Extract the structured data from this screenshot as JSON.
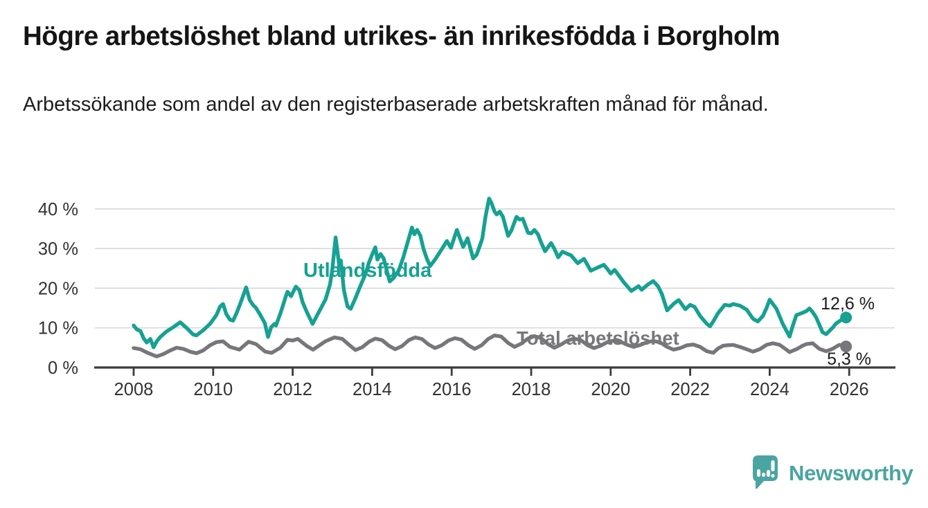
{
  "header": {
    "title": "Högre arbetslöshet bland utrikes- än inrikesfödda i Borgholm",
    "subtitle": "Arbetssökande som andel av den registerbaserade arbetskraften månad för månad."
  },
  "branding": {
    "logo_text": "Newsworthy",
    "logo_icon": "speech-bubble-with-bar-chart-and-exclamation",
    "logo_color": "#4aa5a2"
  },
  "chart_data": {
    "type": "line",
    "title": "Högre arbetslöshet bland utrikes- än inrikesfödda i Borgholm",
    "subtitle": "Arbetssökande som andel av den registerbaserade arbetskraften månad för månad.",
    "unit": "%",
    "grid": true,
    "legend_position": "inline-labels-on-chart",
    "x_axis": {
      "range": [
        2007.0,
        2027.15
      ],
      "tick_years": [
        2008,
        2010,
        2012,
        2014,
        2016,
        2018,
        2020,
        2022,
        2024,
        2026
      ]
    },
    "y_axis": {
      "range": [
        0,
        44
      ],
      "ticks": [
        {
          "value": 0,
          "label": "0 %"
        },
        {
          "value": 10,
          "label": "10 %"
        },
        {
          "value": 20,
          "label": "20 %"
        },
        {
          "value": 30,
          "label": "30 %"
        },
        {
          "value": 40,
          "label": "40 %"
        }
      ]
    },
    "series": [
      {
        "name": "Utlandsfödda",
        "color": "#16a192",
        "end_value": 12.6,
        "end_label": "12,6 %",
        "points": [
          [
            2008.0,
            10.6
          ],
          [
            2008.08,
            9.6
          ],
          [
            2008.17,
            9.2
          ],
          [
            2008.25,
            7.4
          ],
          [
            2008.33,
            6.3
          ],
          [
            2008.42,
            7.2
          ],
          [
            2008.5,
            5.1
          ],
          [
            2008.58,
            6.6
          ],
          [
            2008.67,
            7.7
          ],
          [
            2008.83,
            9.1
          ],
          [
            2009.0,
            10.2
          ],
          [
            2009.17,
            11.4
          ],
          [
            2009.33,
            10.0
          ],
          [
            2009.5,
            8.3
          ],
          [
            2009.58,
            8.1
          ],
          [
            2009.75,
            9.4
          ],
          [
            2009.92,
            11.0
          ],
          [
            2010.08,
            13.2
          ],
          [
            2010.17,
            15.3
          ],
          [
            2010.25,
            16.0
          ],
          [
            2010.33,
            13.5
          ],
          [
            2010.42,
            12.1
          ],
          [
            2010.5,
            11.8
          ],
          [
            2010.58,
            13.5
          ],
          [
            2010.67,
            15.8
          ],
          [
            2010.83,
            20.2
          ],
          [
            2010.92,
            17.0
          ],
          [
            2011.0,
            15.8
          ],
          [
            2011.08,
            15.0
          ],
          [
            2011.17,
            13.5
          ],
          [
            2011.3,
            11.2
          ],
          [
            2011.38,
            7.7
          ],
          [
            2011.46,
            10.2
          ],
          [
            2011.54,
            11.0
          ],
          [
            2011.58,
            10.6
          ],
          [
            2011.7,
            13.9
          ],
          [
            2011.83,
            18.0
          ],
          [
            2011.87,
            19.1
          ],
          [
            2011.96,
            18.0
          ],
          [
            2012.08,
            20.4
          ],
          [
            2012.17,
            19.5
          ],
          [
            2012.25,
            16.5
          ],
          [
            2012.36,
            13.9
          ],
          [
            2012.5,
            11.0
          ],
          [
            2012.58,
            12.5
          ],
          [
            2012.67,
            14.2
          ],
          [
            2012.83,
            17.2
          ],
          [
            2012.94,
            21.0
          ],
          [
            2013.0,
            25.0
          ],
          [
            2013.08,
            32.8
          ],
          [
            2013.13,
            29.0
          ],
          [
            2013.17,
            25.5
          ],
          [
            2013.21,
            27.0
          ],
          [
            2013.29,
            19.5
          ],
          [
            2013.38,
            15.4
          ],
          [
            2013.46,
            14.8
          ],
          [
            2013.58,
            17.5
          ],
          [
            2013.7,
            20.5
          ],
          [
            2013.83,
            23.5
          ],
          [
            2013.92,
            26.5
          ],
          [
            2014.0,
            28.5
          ],
          [
            2014.08,
            30.3
          ],
          [
            2014.13,
            27.2
          ],
          [
            2014.21,
            28.6
          ],
          [
            2014.29,
            27.5
          ],
          [
            2014.38,
            24.0
          ],
          [
            2014.44,
            21.7
          ],
          [
            2014.54,
            22.6
          ],
          [
            2014.67,
            24.5
          ],
          [
            2014.79,
            28.0
          ],
          [
            2014.92,
            32.5
          ],
          [
            2015.0,
            35.3
          ],
          [
            2015.06,
            33.6
          ],
          [
            2015.13,
            34.7
          ],
          [
            2015.21,
            33.3
          ],
          [
            2015.29,
            30.0
          ],
          [
            2015.38,
            27.3
          ],
          [
            2015.46,
            25.6
          ],
          [
            2015.58,
            27.2
          ],
          [
            2015.75,
            29.8
          ],
          [
            2015.88,
            31.9
          ],
          [
            2015.98,
            30.2
          ],
          [
            2016.13,
            34.7
          ],
          [
            2016.21,
            32.5
          ],
          [
            2016.29,
            30.4
          ],
          [
            2016.4,
            32.6
          ],
          [
            2016.54,
            27.5
          ],
          [
            2016.63,
            28.5
          ],
          [
            2016.77,
            32.5
          ],
          [
            2016.85,
            38.0
          ],
          [
            2016.94,
            42.6
          ],
          [
            2017.0,
            41.5
          ],
          [
            2017.08,
            39.3
          ],
          [
            2017.13,
            38.6
          ],
          [
            2017.21,
            39.3
          ],
          [
            2017.29,
            38.0
          ],
          [
            2017.42,
            33.2
          ],
          [
            2017.5,
            34.5
          ],
          [
            2017.63,
            38.0
          ],
          [
            2017.71,
            37.3
          ],
          [
            2017.79,
            37.5
          ],
          [
            2017.92,
            34.0
          ],
          [
            2018.0,
            33.8
          ],
          [
            2018.08,
            34.7
          ],
          [
            2018.17,
            33.6
          ],
          [
            2018.25,
            31.5
          ],
          [
            2018.35,
            29.3
          ],
          [
            2018.5,
            31.4
          ],
          [
            2018.58,
            30.0
          ],
          [
            2018.68,
            27.8
          ],
          [
            2018.79,
            29.2
          ],
          [
            2018.92,
            28.6
          ],
          [
            2019.0,
            28.3
          ],
          [
            2019.17,
            26.3
          ],
          [
            2019.33,
            27.4
          ],
          [
            2019.5,
            24.4
          ],
          [
            2019.67,
            25.2
          ],
          [
            2019.83,
            25.9
          ],
          [
            2019.92,
            24.8
          ],
          [
            2020.0,
            23.7
          ],
          [
            2020.1,
            24.6
          ],
          [
            2020.19,
            23.4
          ],
          [
            2020.33,
            21.5
          ],
          [
            2020.52,
            19.3
          ],
          [
            2020.7,
            20.5
          ],
          [
            2020.78,
            19.6
          ],
          [
            2020.92,
            20.8
          ],
          [
            2021.07,
            21.8
          ],
          [
            2021.19,
            20.5
          ],
          [
            2021.29,
            18.5
          ],
          [
            2021.42,
            14.4
          ],
          [
            2021.59,
            16.1
          ],
          [
            2021.71,
            17.0
          ],
          [
            2021.88,
            14.7
          ],
          [
            2022.0,
            15.8
          ],
          [
            2022.11,
            15.3
          ],
          [
            2022.25,
            13.0
          ],
          [
            2022.42,
            11.0
          ],
          [
            2022.5,
            10.4
          ],
          [
            2022.58,
            11.6
          ],
          [
            2022.7,
            13.7
          ],
          [
            2022.87,
            15.8
          ],
          [
            2023.0,
            15.6
          ],
          [
            2023.08,
            16.0
          ],
          [
            2023.25,
            15.6
          ],
          [
            2023.42,
            14.6
          ],
          [
            2023.58,
            12.3
          ],
          [
            2023.7,
            11.6
          ],
          [
            2023.83,
            13.0
          ],
          [
            2023.92,
            15.0
          ],
          [
            2024.0,
            17.1
          ],
          [
            2024.17,
            14.8
          ],
          [
            2024.33,
            11.0
          ],
          [
            2024.5,
            7.8
          ],
          [
            2024.58,
            10.5
          ],
          [
            2024.67,
            13.2
          ],
          [
            2024.83,
            13.8
          ],
          [
            2024.92,
            14.2
          ],
          [
            2025.0,
            14.9
          ],
          [
            2025.08,
            14.0
          ],
          [
            2025.17,
            12.6
          ],
          [
            2025.33,
            8.9
          ],
          [
            2025.42,
            8.4
          ],
          [
            2025.58,
            10.0
          ],
          [
            2025.67,
            11.1
          ],
          [
            2025.83,
            12.2
          ],
          [
            2025.92,
            12.6
          ]
        ]
      },
      {
        "name": "Total arbetslöshet",
        "color": "#77767a",
        "end_value": 5.3,
        "end_label": "5,3 %",
        "points": [
          [
            2008.0,
            4.9
          ],
          [
            2008.17,
            4.6
          ],
          [
            2008.33,
            3.8
          ],
          [
            2008.5,
            3.1
          ],
          [
            2008.58,
            2.8
          ],
          [
            2008.75,
            3.4
          ],
          [
            2008.92,
            4.3
          ],
          [
            2009.08,
            5.0
          ],
          [
            2009.25,
            4.7
          ],
          [
            2009.42,
            4.0
          ],
          [
            2009.58,
            3.6
          ],
          [
            2009.75,
            4.3
          ],
          [
            2009.92,
            5.6
          ],
          [
            2010.08,
            6.4
          ],
          [
            2010.25,
            6.6
          ],
          [
            2010.42,
            5.2
          ],
          [
            2010.66,
            4.5
          ],
          [
            2010.89,
            6.5
          ],
          [
            2011.08,
            5.9
          ],
          [
            2011.31,
            4.0
          ],
          [
            2011.47,
            3.7
          ],
          [
            2011.69,
            5.0
          ],
          [
            2011.87,
            7.0
          ],
          [
            2012.0,
            6.8
          ],
          [
            2012.13,
            7.2
          ],
          [
            2012.36,
            5.4
          ],
          [
            2012.51,
            4.5
          ],
          [
            2012.82,
            6.6
          ],
          [
            2013.05,
            7.6
          ],
          [
            2013.25,
            7.2
          ],
          [
            2013.42,
            5.7
          ],
          [
            2013.58,
            4.4
          ],
          [
            2013.75,
            5.1
          ],
          [
            2013.92,
            6.5
          ],
          [
            2014.08,
            7.3
          ],
          [
            2014.25,
            6.9
          ],
          [
            2014.42,
            5.5
          ],
          [
            2014.58,
            4.6
          ],
          [
            2014.75,
            5.4
          ],
          [
            2014.92,
            6.9
          ],
          [
            2015.08,
            7.6
          ],
          [
            2015.25,
            7.2
          ],
          [
            2015.42,
            5.8
          ],
          [
            2015.58,
            4.9
          ],
          [
            2015.75,
            5.6
          ],
          [
            2015.92,
            6.8
          ],
          [
            2016.08,
            7.4
          ],
          [
            2016.25,
            7.0
          ],
          [
            2016.42,
            5.6
          ],
          [
            2016.58,
            4.7
          ],
          [
            2016.75,
            5.6
          ],
          [
            2016.92,
            7.2
          ],
          [
            2017.08,
            8.1
          ],
          [
            2017.25,
            7.8
          ],
          [
            2017.42,
            6.2
          ],
          [
            2017.58,
            5.2
          ],
          [
            2017.75,
            6.0
          ],
          [
            2017.92,
            7.3
          ],
          [
            2018.08,
            7.9
          ],
          [
            2018.25,
            7.4
          ],
          [
            2018.42,
            5.9
          ],
          [
            2018.58,
            5.0
          ],
          [
            2018.75,
            5.8
          ],
          [
            2018.92,
            6.8
          ],
          [
            2019.08,
            7.3
          ],
          [
            2019.25,
            6.9
          ],
          [
            2019.42,
            5.6
          ],
          [
            2019.58,
            4.9
          ],
          [
            2019.75,
            5.5
          ],
          [
            2019.92,
            6.4
          ],
          [
            2020.08,
            6.8
          ],
          [
            2020.25,
            6.5
          ],
          [
            2020.42,
            5.7
          ],
          [
            2020.58,
            5.2
          ],
          [
            2020.75,
            5.7
          ],
          [
            2020.92,
            6.4
          ],
          [
            2021.08,
            6.7
          ],
          [
            2021.25,
            6.3
          ],
          [
            2021.42,
            5.2
          ],
          [
            2021.58,
            4.5
          ],
          [
            2021.75,
            4.9
          ],
          [
            2021.92,
            5.6
          ],
          [
            2022.08,
            5.8
          ],
          [
            2022.25,
            5.2
          ],
          [
            2022.42,
            4.1
          ],
          [
            2022.58,
            3.7
          ],
          [
            2022.7,
            4.8
          ],
          [
            2022.83,
            5.5
          ],
          [
            2022.92,
            5.6
          ],
          [
            2023.08,
            5.7
          ],
          [
            2023.25,
            5.2
          ],
          [
            2023.42,
            4.6
          ],
          [
            2023.58,
            4.0
          ],
          [
            2023.75,
            4.6
          ],
          [
            2023.92,
            5.7
          ],
          [
            2024.08,
            6.1
          ],
          [
            2024.25,
            5.7
          ],
          [
            2024.42,
            4.5
          ],
          [
            2024.5,
            3.9
          ],
          [
            2024.67,
            4.6
          ],
          [
            2024.83,
            5.5
          ],
          [
            2024.92,
            5.9
          ],
          [
            2025.08,
            6.1
          ],
          [
            2025.25,
            4.7
          ],
          [
            2025.42,
            4.1
          ],
          [
            2025.58,
            4.7
          ],
          [
            2025.75,
            5.7
          ],
          [
            2025.92,
            5.3
          ]
        ]
      }
    ]
  }
}
